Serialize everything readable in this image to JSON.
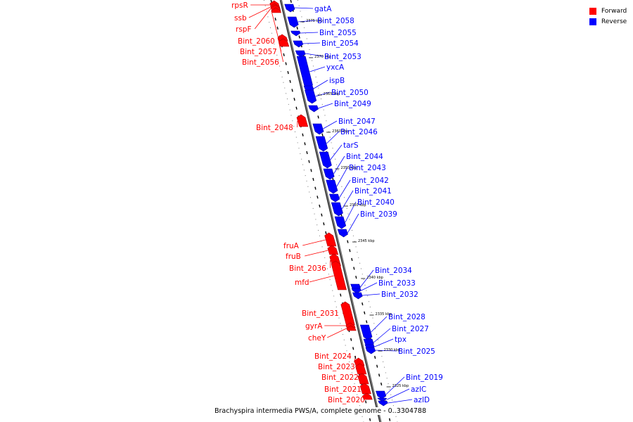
{
  "colors": {
    "forward": "#ff0000",
    "reverse": "#0000ff",
    "backbone": "#7a7a7a"
  },
  "legend": {
    "forward_label": "Forward",
    "reverse_label": "Reverse"
  },
  "caption": "Brachyspira intermedia PWS/A, complete genome - 0..3304788",
  "ticks": [
    "2375 kbp",
    "2370 kbp",
    "2365 kbp",
    "2360 kbp",
    "2355 kbp",
    "2350 kbp",
    "2345 kbp",
    "2340 kbp",
    "2335 kbp",
    "2330 kbp",
    "2325 kbp"
  ],
  "genes": [
    {
      "name": "rpsR",
      "strand": "forward"
    },
    {
      "name": "ssb",
      "strand": "forward"
    },
    {
      "name": "rspF",
      "strand": "forward"
    },
    {
      "name": "Bint_2060",
      "strand": "forward"
    },
    {
      "name": "Bint_2057",
      "strand": "forward"
    },
    {
      "name": "Bint_2056",
      "strand": "forward"
    },
    {
      "name": "gatA",
      "strand": "reverse"
    },
    {
      "name": "Bint_2058",
      "strand": "reverse"
    },
    {
      "name": "Bint_2055",
      "strand": "reverse"
    },
    {
      "name": "Bint_2054",
      "strand": "reverse"
    },
    {
      "name": "Bint_2053",
      "strand": "reverse"
    },
    {
      "name": "yxcA",
      "strand": "reverse"
    },
    {
      "name": "ispB",
      "strand": "reverse"
    },
    {
      "name": "Bint_2050",
      "strand": "reverse"
    },
    {
      "name": "Bint_2049",
      "strand": "reverse"
    },
    {
      "name": "Bint_2048",
      "strand": "forward"
    },
    {
      "name": "Bint_2047",
      "strand": "reverse"
    },
    {
      "name": "Bint_2046",
      "strand": "reverse"
    },
    {
      "name": "tarS",
      "strand": "reverse"
    },
    {
      "name": "Bint_2044",
      "strand": "reverse"
    },
    {
      "name": "Bint_2043",
      "strand": "reverse"
    },
    {
      "name": "Bint_2042",
      "strand": "reverse"
    },
    {
      "name": "Bint_2041",
      "strand": "reverse"
    },
    {
      "name": "Bint_2040",
      "strand": "reverse"
    },
    {
      "name": "Bint_2039",
      "strand": "reverse"
    },
    {
      "name": "fruA",
      "strand": "forward"
    },
    {
      "name": "fruB",
      "strand": "forward"
    },
    {
      "name": "Bint_2036",
      "strand": "forward"
    },
    {
      "name": "mfd",
      "strand": "forward"
    },
    {
      "name": "Bint_2034",
      "strand": "reverse"
    },
    {
      "name": "Bint_2033",
      "strand": "reverse"
    },
    {
      "name": "Bint_2032",
      "strand": "reverse"
    },
    {
      "name": "Bint_2031",
      "strand": "forward"
    },
    {
      "name": "gyrA",
      "strand": "forward"
    },
    {
      "name": "cheY",
      "strand": "forward"
    },
    {
      "name": "Bint_2028",
      "strand": "reverse"
    },
    {
      "name": "Bint_2027",
      "strand": "reverse"
    },
    {
      "name": "tpx",
      "strand": "reverse"
    },
    {
      "name": "Bint_2025",
      "strand": "reverse"
    },
    {
      "name": "Bint_2024",
      "strand": "forward"
    },
    {
      "name": "Bint_2023",
      "strand": "forward"
    },
    {
      "name": "Bint_2022",
      "strand": "forward"
    },
    {
      "name": "Bint_2021",
      "strand": "forward"
    },
    {
      "name": "Bint_2020",
      "strand": "forward"
    },
    {
      "name": "Bint_2019",
      "strand": "reverse"
    },
    {
      "name": "azlC",
      "strand": "reverse"
    },
    {
      "name": "azlD",
      "strand": "reverse"
    }
  ]
}
